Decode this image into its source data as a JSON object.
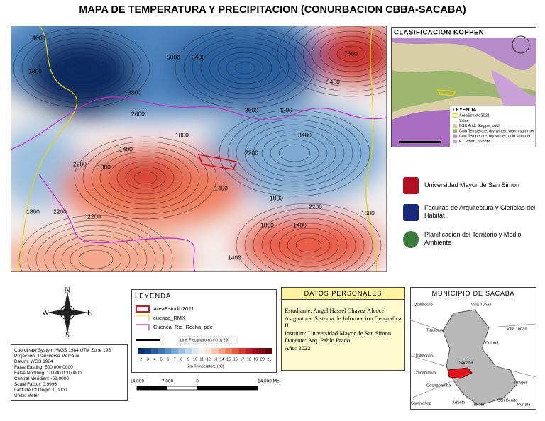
{
  "title": "MAPA DE TEMPERATURA Y PRECIPITACION (CONURBACION CBBA-SACABA)",
  "main_map": {
    "contour_labels": [
      "4600",
      "1800",
      "5000",
      "3400",
      "7600",
      "5400",
      "3800",
      "2600",
      "3600",
      "4200",
      "1800",
      "1400",
      "3400",
      "2200",
      "2200",
      "1800",
      "1400",
      "1800",
      "2200",
      "1800",
      "2200",
      "2200",
      "1800",
      "1400",
      "1600",
      "1400"
    ]
  },
  "koppen": {
    "title": "CLASIFICACION KOPPEN",
    "legend_title": "LEYENDA",
    "items": [
      "AreaEstudio2021",
      "Value",
      "BSK Arid, Steppe, cold",
      "Cwb Temperate, dry winter, Warm summer",
      "Cwc Temperate, dry winter, cold summer",
      "ET Polar , Tundra"
    ]
  },
  "logos": [
    "Universidad Mayor de San Simon",
    "Facultad de Arquitectura y Ciencias del Habitat",
    "Planificacion del Territorio y Medio Ambiente"
  ],
  "compass": {
    "n": "N",
    "s": "S",
    "e": "E",
    "w": "W"
  },
  "coordinates": [
    "Coordinate System: WGS 1984 UTM Zone 19S",
    "Projection: Transverse Mercator",
    "Datum: WGS 1984",
    "False Easting: 500.000,0000",
    "False Northing: 10.000.000,0000",
    "Central Meridian: -69,0000",
    "Scale Factor: 0,9996",
    "Latitude Of Origin: 0,0000",
    "Units: Meter"
  ],
  "legend": {
    "title": "LEYENDA",
    "items": [
      "AreaEstudio2021",
      "cuenca_RMK",
      "Cuenca_Rio_Rocha_pdc"
    ],
    "line_label": "Line: Precipitation (mm) by 200",
    "colorbar_ticks": [
      2,
      3,
      4,
      5,
      6,
      7,
      8,
      9,
      10,
      11,
      12,
      13,
      14,
      15,
      16,
      17,
      18,
      19,
      20,
      21
    ],
    "colorbar_title": "2m Temperature (°C)"
  },
  "scale_bar": [
    "14.000",
    "7.000",
    "0",
    "14.000 Meters"
  ],
  "personal": {
    "title": "DATOS PERSONALES",
    "lines": [
      "Estudiante: Angel Hassel Chavez Alcocer",
      "Asignatura: Sistema de Informacion Geografica II",
      "Instituto: Universidad Mayor de San Simon",
      "Docente: Arq. Pablo Prado",
      "Año: 2022"
    ]
  },
  "municipio": {
    "title": "MUNICIPIO DE SACABA",
    "places": [
      "Quillacollo",
      "Villa Tunari",
      "Tiquipaya",
      "Villa Tunari",
      "Colomi",
      "Quillacollo",
      "Sacaba",
      "Colcapirhua",
      "Cochabamba",
      "Tiraque",
      "Santivañez",
      "Arbieto",
      "Tolata",
      "San Benito",
      "Punata"
    ]
  }
}
